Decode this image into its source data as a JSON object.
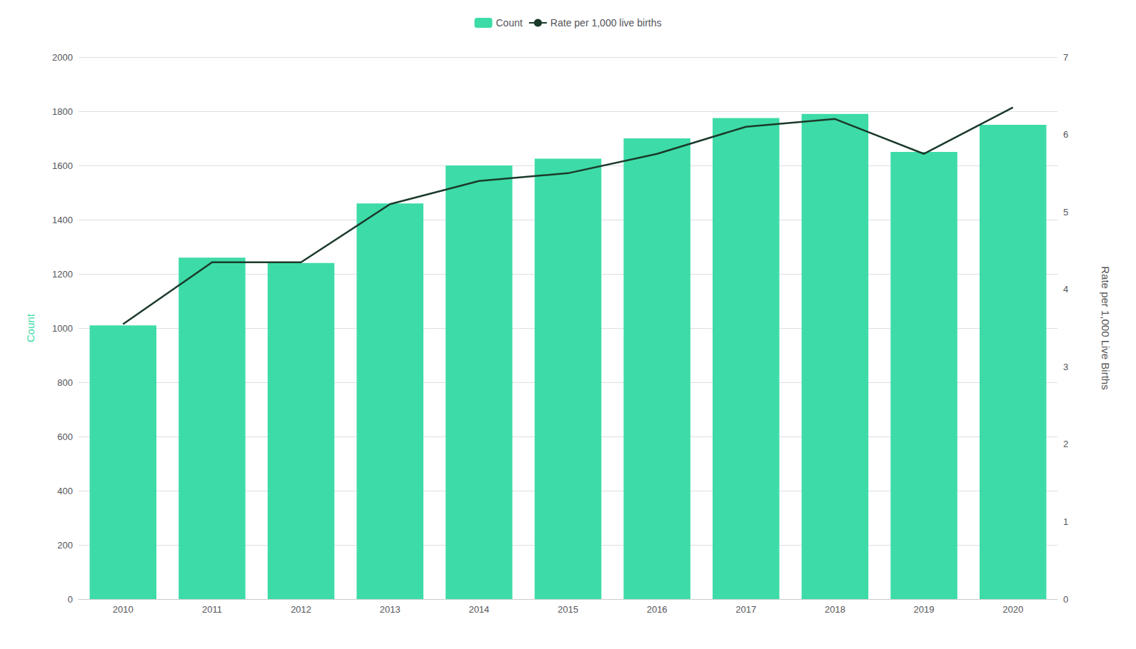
{
  "chart_data": {
    "type": "bar",
    "categories": [
      "2010",
      "2011",
      "2012",
      "2013",
      "2014",
      "2015",
      "2016",
      "2017",
      "2018",
      "2019",
      "2020"
    ],
    "series": [
      {
        "name": "Count",
        "type": "bar",
        "color": "#3DDBA8",
        "values": [
          1010,
          1260,
          1240,
          1460,
          1600,
          1625,
          1700,
          1775,
          1790,
          1650,
          1750
        ]
      },
      {
        "name": "Rate per 1,000 live births",
        "type": "line",
        "color": "#1a3a2a",
        "axis": "y2",
        "values": [
          3.55,
          4.35,
          4.35,
          5.1,
          5.4,
          5.5,
          5.75,
          6.1,
          6.2,
          5.75,
          6.35
        ]
      }
    ],
    "ylabel": "Count",
    "y2label": "Rate per 1,000 Live Births",
    "ylim": [
      0,
      2000
    ],
    "yticks": [
      0,
      200,
      400,
      600,
      800,
      1000,
      1200,
      1400,
      1600,
      1800,
      2000
    ],
    "y2lim": [
      0,
      7
    ],
    "y2ticks": [
      0,
      1,
      2,
      3,
      4,
      5,
      6,
      7
    ],
    "grid": true,
    "legend": "top"
  }
}
